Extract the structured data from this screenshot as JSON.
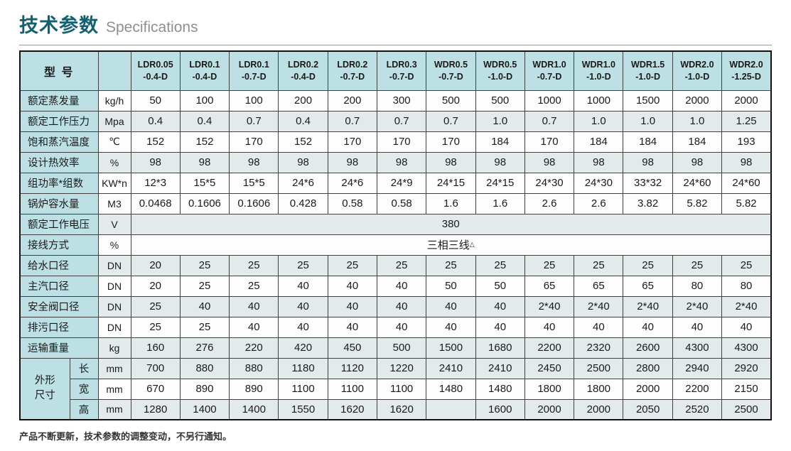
{
  "page": {
    "title_cn": "技术参数",
    "title_en": "Specifications",
    "footer_note": "产品不断更新，技术参数的调整变动，不另行通知。"
  },
  "colors": {
    "accent_teal": "#14606e",
    "header_cell_cyan": "#bce0e4",
    "stripe_gray": "#e3eaeb",
    "stripe_white": "#fdfdfd",
    "border_inner": "#404040",
    "border_outer": "#111111"
  },
  "table": {
    "model_header": "型 号",
    "models": [
      "LDR0.05\n-0.4-D",
      "LDR0.1\n-0.4-D",
      "LDR0.1\n-0.7-D",
      "LDR0.2\n-0.4-D",
      "LDR0.2\n-0.7-D",
      "LDR0.3\n-0.7-D",
      "WDR0.5\n-0.7-D",
      "WDR0.5\n-1.0-D",
      "WDR1.0\n-0.7-D",
      "WDR1.0\n-1.0-D",
      "WDR1.5\n-1.0-D",
      "WDR2.0\n-1.0-D",
      "WDR2.0\n-1.25-D"
    ],
    "rows": [
      {
        "label": "额定蒸发量",
        "unit": "kg/h",
        "stripe": "white",
        "values": [
          "50",
          "100",
          "100",
          "200",
          "200",
          "300",
          "500",
          "500",
          "1000",
          "1000",
          "1500",
          "2000",
          "2000"
        ]
      },
      {
        "label": "额定工作压力",
        "unit": "Mpa",
        "stripe": "gray",
        "values": [
          "0.4",
          "0.4",
          "0.7",
          "0.4",
          "0.7",
          "0.7",
          "0.7",
          "1.0",
          "0.7",
          "1.0",
          "1.0",
          "1.0",
          "1.25"
        ]
      },
      {
        "label": "饱和蒸汽温度",
        "unit": "℃",
        "stripe": "white",
        "values": [
          "152",
          "152",
          "170",
          "152",
          "170",
          "170",
          "170",
          "184",
          "170",
          "184",
          "184",
          "184",
          "193"
        ]
      },
      {
        "label": "设计热效率",
        "unit": "%",
        "stripe": "gray",
        "values": [
          "98",
          "98",
          "98",
          "98",
          "98",
          "98",
          "98",
          "98",
          "98",
          "98",
          "98",
          "98",
          "98"
        ]
      },
      {
        "label": "组功率*组数",
        "unit": "KW*n",
        "stripe": "white",
        "values": [
          "12*3",
          "15*5",
          "15*5",
          "24*6",
          "24*6",
          "24*9",
          "24*15",
          "24*15",
          "24*30",
          "24*30",
          "33*32",
          "24*60",
          "24*60"
        ]
      },
      {
        "label": "锅炉容水量",
        "unit": "M3",
        "stripe": "white",
        "values": [
          "0.0468",
          "0.1606",
          "0.1606",
          "0.428",
          "0.58",
          "0.58",
          "1.6",
          "1.6",
          "2.6",
          "2.6",
          "3.82",
          "5.82",
          "5.82"
        ]
      },
      {
        "label": "额定工作电压",
        "unit": "V",
        "stripe": "gray",
        "span_value": "380"
      },
      {
        "label": "接线方式",
        "unit": "%",
        "stripe": "white",
        "span_value": "三相三线",
        "span_sup": "△"
      },
      {
        "label": "给水口径",
        "unit": "DN",
        "stripe": "gray",
        "values": [
          "20",
          "25",
          "25",
          "25",
          "25",
          "25",
          "25",
          "25",
          "25",
          "25",
          "25",
          "25",
          "25"
        ]
      },
      {
        "label": "主汽口径",
        "unit": "DN",
        "stripe": "white",
        "values": [
          "20",
          "25",
          "25",
          "40",
          "40",
          "40",
          "50",
          "50",
          "65",
          "65",
          "65",
          "80",
          "80"
        ]
      },
      {
        "label": "安全阀口径",
        "unit": "DN",
        "stripe": "gray",
        "values": [
          "25",
          "40",
          "40",
          "40",
          "40",
          "40",
          "40",
          "40",
          "2*40",
          "2*40",
          "2*40",
          "2*40",
          "2*40"
        ]
      },
      {
        "label": "排污口径",
        "unit": "DN",
        "stripe": "white",
        "values": [
          "25",
          "25",
          "40",
          "40",
          "40",
          "40",
          "40",
          "40",
          "40",
          "40",
          "40",
          "40",
          "40"
        ]
      },
      {
        "label": "运输重量",
        "unit": "kg",
        "stripe": "gray",
        "values": [
          "160",
          "276",
          "220",
          "420",
          "450",
          "500",
          "1500",
          "1680",
          "2200",
          "2320",
          "2600",
          "4300",
          "4300"
        ]
      }
    ],
    "dimensions": {
      "label": "外形\n尺寸",
      "rows": [
        {
          "sub": "长",
          "unit": "mm",
          "stripe": "gray",
          "values": [
            "700",
            "880",
            "880",
            "1180",
            "1120",
            "1220",
            "2410",
            "2410",
            "2450",
            "2500",
            "2800",
            "2940",
            "2920"
          ]
        },
        {
          "sub": "宽",
          "unit": "mm",
          "stripe": "white",
          "values": [
            "670",
            "890",
            "890",
            "1100",
            "1100",
            "1100",
            "1480",
            "1480",
            "1800",
            "1800",
            "2000",
            "2200",
            "2150"
          ]
        },
        {
          "sub": "高",
          "unit": "mm",
          "stripe": "gray",
          "values": [
            "1280",
            "1400",
            "1400",
            "1550",
            "1620",
            "1620",
            "",
            "1600",
            "2000",
            "2000",
            "2050",
            "2520",
            "2500"
          ]
        }
      ]
    }
  }
}
